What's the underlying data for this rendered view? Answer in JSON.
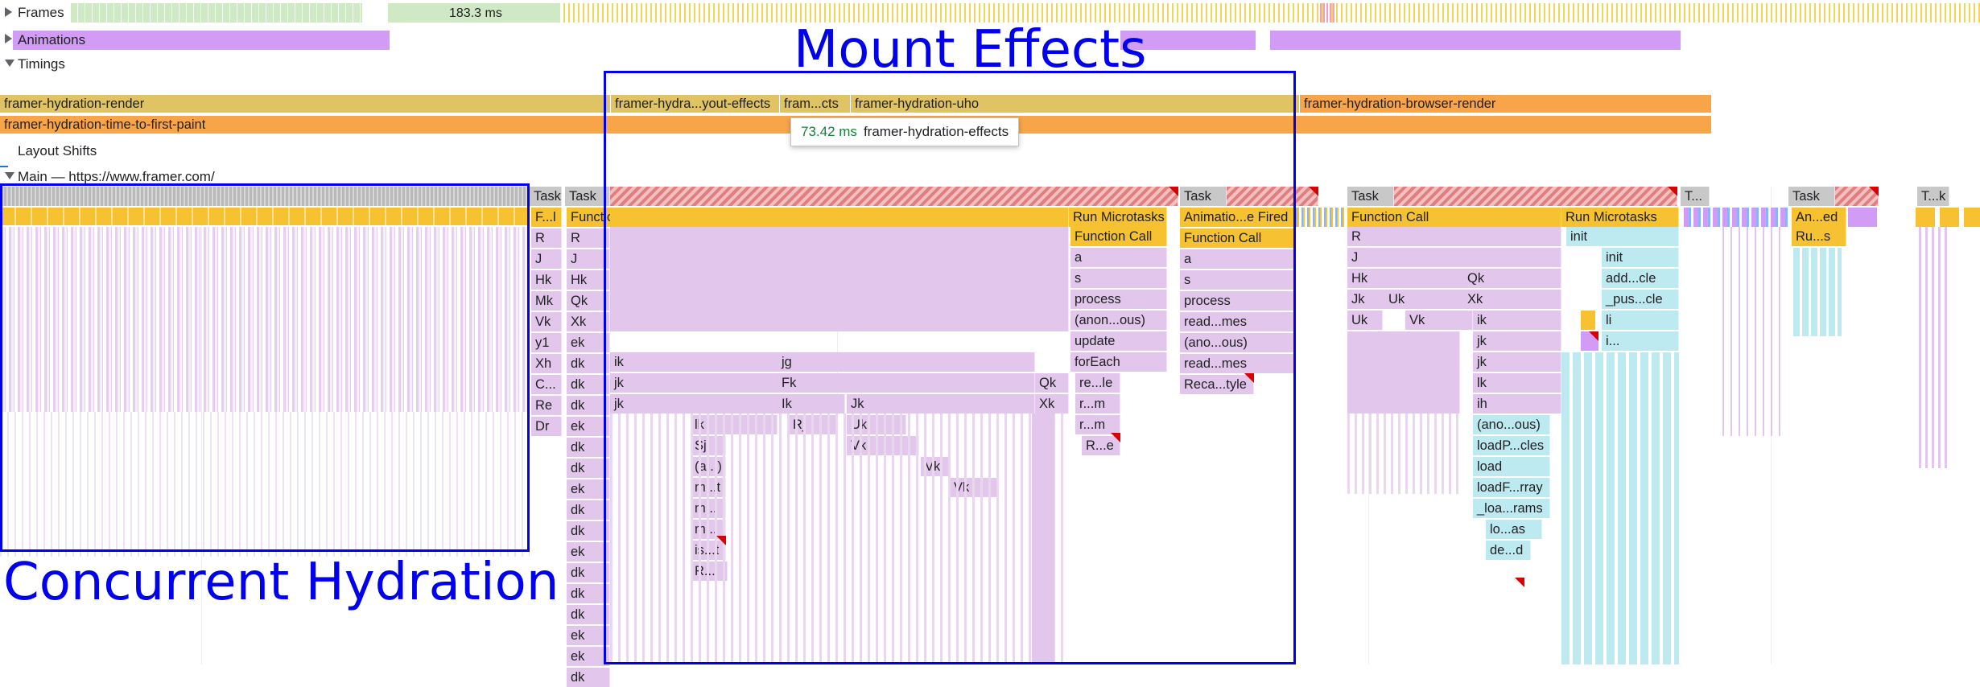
{
  "tracks": {
    "frames_label": "Frames",
    "frame_duration": "183.3 ms",
    "animations_label": "Animations",
    "timings_label": "Timings",
    "layout_shifts_label": "Layout Shifts",
    "main_label": "Main — https://www.framer.com/"
  },
  "timings": {
    "render": "framer-hydration-render",
    "layout_effects": "framer-hydra...yout-effects",
    "effects_short": "fram...cts",
    "uho": "framer-hydration-uho",
    "browser_render": "framer-hydration-browser-render",
    "ttfp": "framer-hydration-time-to-first-paint"
  },
  "tooltip": {
    "duration": "73.42 ms",
    "name": "framer-hydration-effects"
  },
  "annotations": {
    "mount_effects": "Mount Effects",
    "concurrent_hydration": "Concurrent Hydration"
  },
  "flame": {
    "task": "Task",
    "task_short": "T...",
    "task_k": "T...k",
    "col_a": [
      "F...l",
      "R",
      "J",
      "Hk",
      "Mk",
      "Vk",
      "y1",
      "Xh",
      "C...",
      "Re",
      "Dr"
    ],
    "col_b": [
      "Function Call",
      "R",
      "J",
      "Hk",
      "Qk",
      "Xk",
      "ek",
      "dk",
      "dk",
      "dk",
      "ek",
      "dk",
      "dk",
      "ek",
      "dk",
      "dk",
      "ek",
      "dk",
      "dk",
      "dk",
      "ek",
      "ek",
      "dk"
    ],
    "col_c": [
      "ik",
      "jk",
      "jk",
      "lk",
      "Sj",
      "(a...)",
      "m...t",
      "m...",
      "m...",
      "is...t",
      "R..."
    ],
    "col_c_lk": "lk",
    "col_d": [
      "jg",
      "Fk",
      "Ik",
      "Rj"
    ],
    "col_e": [
      "Jk",
      "Uk",
      "Vk",
      "Vk",
      "Vk"
    ],
    "col_e_uk2": "Uk",
    "qk": "Qk",
    "xk": "Xk",
    "run_microtasks": "Run Microtasks",
    "mt": [
      "Function Call",
      "a",
      "s",
      "process",
      "(anon...ous)",
      "update",
      "forEach",
      "re...le",
      "r...m",
      "r...m",
      "R...e"
    ],
    "anim": [
      "Animatio...e Fired",
      "Function Call",
      "a",
      "s",
      "process",
      "read...mes",
      "(ano...ous)",
      "read...mes",
      "Reca...tyle"
    ],
    "task3": {
      "fc": "Function Call",
      "col1": [
        "R",
        "J",
        "Hk",
        "Jk",
        "Uk",
        "Vk"
      ],
      "uk": "Uk",
      "vk": "Vk",
      "qk": "Qk",
      "xk": "Xk",
      "col2": [
        "ik",
        "jk",
        "jk",
        "lk",
        "ih",
        "(ano...ous)",
        "loadP...cles",
        "load",
        "loadF...rray",
        "_loa...rams",
        "lo...as",
        "de...d"
      ]
    },
    "rm2": {
      "label": "Run Microtasks",
      "items": [
        "init",
        "init",
        "add...cle",
        "_pus...cle",
        "li",
        "i..."
      ]
    },
    "task4": {
      "label": "Task",
      "items": [
        "An...ed",
        "Ru...s"
      ]
    }
  },
  "colors": {
    "annotation": "#0000ee",
    "script": "#f6c232",
    "call": "#e3c6ec",
    "timing_render": "#e0c463",
    "timing_ttfp": "#f8a54a"
  }
}
